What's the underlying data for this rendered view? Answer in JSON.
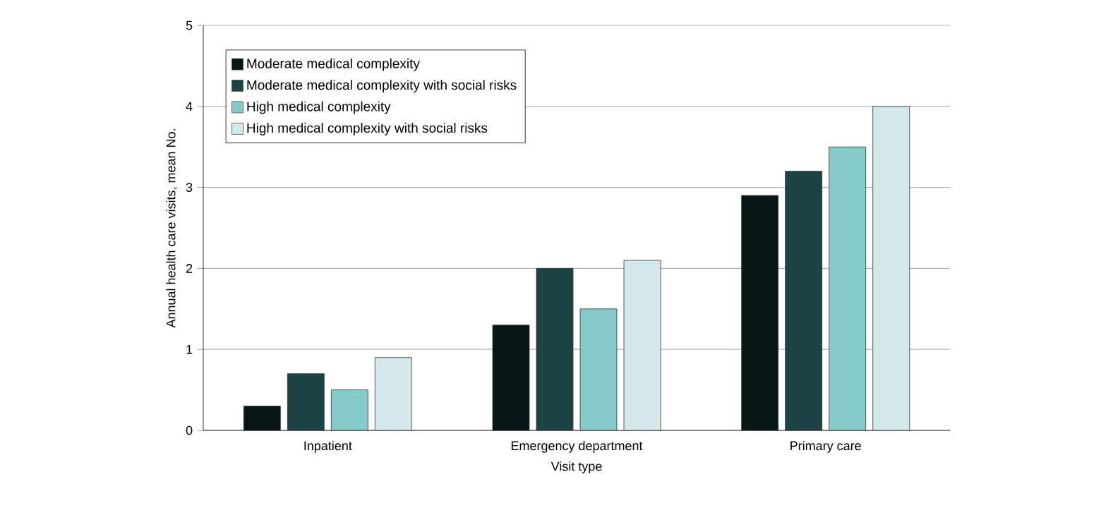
{
  "chart_data": {
    "type": "bar",
    "xlabel": "Visit type",
    "ylabel": "Annual health care visits, mean No.",
    "categories": [
      "Inpatient",
      "Emergency department",
      "Primary care"
    ],
    "series": [
      {
        "name": "Moderate medical complexity",
        "color": "#071717",
        "values": [
          0.3,
          1.3,
          2.9
        ]
      },
      {
        "name": "Moderate medical complexity with social risks",
        "color": "#1b4343",
        "values": [
          0.7,
          2.0,
          3.2
        ]
      },
      {
        "name": "High medical complexity",
        "color": "#84cac8",
        "values": [
          0.5,
          1.5,
          3.5
        ]
      },
      {
        "name": "High medical complexity with social risks",
        "color": "#d3e8ea",
        "values": [
          0.9,
          2.1,
          4.0
        ]
      }
    ],
    "ylim": [
      0,
      5
    ],
    "yticks": [
      0,
      1,
      2,
      3,
      4,
      5
    ],
    "grid": "y",
    "legend": "top left"
  }
}
